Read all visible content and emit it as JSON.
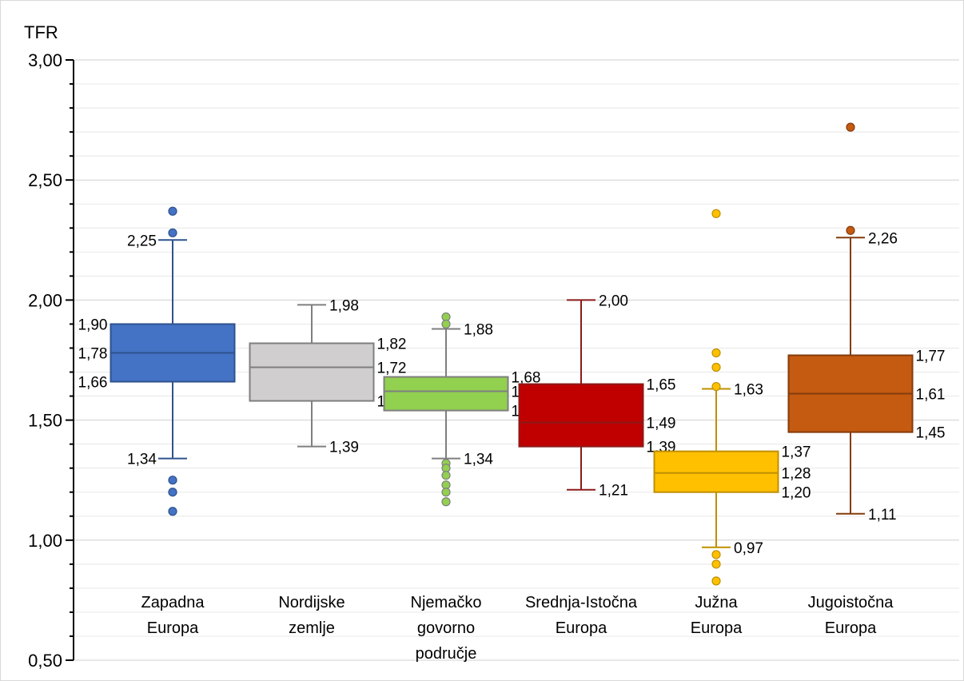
{
  "chart_data": {
    "type": "boxplot",
    "ylabel": "TFR",
    "ylim": [
      0.5,
      3.0
    ],
    "yticks": [
      "3,00",
      "2,50",
      "2,00",
      "1,50",
      "1,00",
      "0,50"
    ],
    "grid": true,
    "groups": [
      {
        "lines": [
          "Zapadna",
          "Europa"
        ],
        "color": "#4472c4",
        "stroke": "#2f528f",
        "whisker_high": 2.25,
        "q3": 1.9,
        "median": 1.78,
        "q1": 1.66,
        "whisker_low": 1.34,
        "outliers": [
          2.37,
          2.28,
          1.25,
          1.2,
          1.12
        ],
        "labels": {
          "whisker_high": "2,25",
          "q3": "1,90",
          "median": "1,78",
          "q1": "1,66",
          "whisker_low": "1,34"
        }
      },
      {
        "lines": [
          "Nordijske",
          "zemlje"
        ],
        "color": "#d0cece",
        "stroke": "#7f7f7f",
        "whisker_high": 1.98,
        "q3": 1.82,
        "median": 1.72,
        "q1": 1.58,
        "whisker_low": 1.39,
        "outliers": [],
        "labels": {
          "whisker_high": "1,98",
          "q3": "1,82",
          "median": "1,72",
          "q1": "1,58",
          "whisker_low": "1,39"
        }
      },
      {
        "lines": [
          "Njemačko",
          "govorno",
          "područje"
        ],
        "color": "#92d050",
        "stroke": "#7f7f7f",
        "whisker_high": 1.88,
        "q3": 1.68,
        "median": 1.62,
        "q1": 1.54,
        "whisker_low": 1.34,
        "outliers": [
          1.93,
          1.9,
          1.32,
          1.3,
          1.27,
          1.23,
          1.2,
          1.16
        ],
        "labels": {
          "whisker_high": "1,88",
          "q3": "1,68",
          "median": "1,62",
          "q1": "1,54",
          "whisker_low": "1,34"
        }
      },
      {
        "lines": [
          "Srednja-Istočna",
          "Europa"
        ],
        "color": "#c00000",
        "stroke": "#8b1a1a",
        "whisker_high": 2.0,
        "q3": 1.65,
        "median": 1.49,
        "q1": 1.39,
        "whisker_low": 1.21,
        "outliers": [],
        "labels": {
          "whisker_high": "2,00",
          "q3": "1,65",
          "median": "1,49",
          "q1": "1,39",
          "whisker_low": "1,21"
        }
      },
      {
        "lines": [
          "Južna",
          "Europa"
        ],
        "color": "#ffc000",
        "stroke": "#bf9000",
        "whisker_high": 1.63,
        "q3": 1.37,
        "median": 1.28,
        "q1": 1.2,
        "whisker_low": 0.97,
        "outliers": [
          2.36,
          1.78,
          1.72,
          1.64,
          0.94,
          0.9,
          0.83
        ],
        "labels": {
          "whisker_high": "1,63",
          "q3": "1,37",
          "median": "1,28",
          "q1": "1,20",
          "whisker_low": "0,97"
        }
      },
      {
        "lines": [
          "Jugoistočna",
          "Europa"
        ],
        "color": "#c55a11",
        "stroke": "#843c0c",
        "whisker_high": 2.26,
        "q3": 1.77,
        "median": 1.61,
        "q1": 1.45,
        "whisker_low": 1.11,
        "outliers": [
          2.72,
          2.29
        ],
        "labels": {
          "whisker_high": "2,26",
          "q3": "1,77",
          "median": "1,61",
          "q1": "1,45",
          "whisker_low": "1,11"
        }
      }
    ]
  }
}
